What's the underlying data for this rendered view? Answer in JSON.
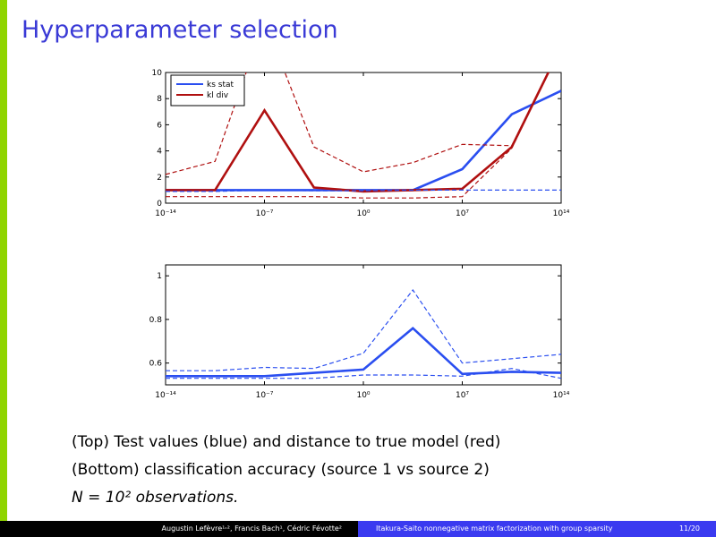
{
  "slide": {
    "title": "Hyperparameter selection",
    "title_color": "#3a3ad6"
  },
  "captions": [
    "(Top) Test values (blue) and distance to true model (red)",
    "(Bottom) classification accuracy (source 1 vs source 2)",
    "N = 10² observations."
  ],
  "footer": {
    "authors": "Augustin Lefèvre¹˒², Francis Bach¹, Cédric Févotte²",
    "talk_title": "Itakura-Saito nonnegative matrix factorization with group sparsity",
    "page": "11/20"
  },
  "chart_data": [
    {
      "type": "line",
      "x_scale": "log",
      "xlim_exponent": [
        -14,
        14
      ],
      "xtick_labels": [
        "10⁻¹⁴",
        "10⁻⁷",
        "10⁰",
        "10⁷",
        "10¹⁴"
      ],
      "xticks_exponent": [
        -14,
        -7,
        0,
        7,
        14
      ],
      "ylim": [
        0,
        10
      ],
      "yticks": [
        0,
        2,
        4,
        6,
        8,
        10
      ],
      "legend": "top-left",
      "x_exponent": [
        -14,
        -10.5,
        -7,
        -3.5,
        0,
        3.5,
        7,
        10.5,
        14
      ],
      "series": [
        {
          "name": "ks stat",
          "color": "#2a4ef0",
          "style": "solid",
          "values": [
            1.0,
            1.0,
            1.0,
            1.0,
            1.0,
            1.0,
            2.6,
            6.8,
            8.6
          ]
        },
        {
          "name": "kl div",
          "color": "#b01010",
          "style": "solid",
          "values": [
            1.0,
            1.0,
            7.1,
            1.2,
            0.9,
            1.0,
            1.1,
            4.3,
            12
          ]
        },
        {
          "color": "#b01010",
          "style": "dashed",
          "values": [
            2.2,
            3.2,
            14,
            4.3,
            2.4,
            3.1,
            4.5,
            4.4,
            12
          ]
        },
        {
          "color": "#b01010",
          "style": "dashed",
          "values": [
            0.5,
            0.5,
            0.5,
            0.5,
            0.4,
            0.4,
            0.5,
            4.2,
            12
          ]
        },
        {
          "color": "#2a4ef0",
          "style": "dashed",
          "values": [
            0.9,
            0.9,
            1.0,
            0.95,
            0.95,
            1.0,
            1.0,
            1.0,
            1.0
          ]
        }
      ]
    },
    {
      "type": "line",
      "x_scale": "log",
      "xlim_exponent": [
        -14,
        14
      ],
      "xtick_labels": [
        "10⁻¹⁴",
        "10⁻⁷",
        "10⁰",
        "10⁷",
        "10¹⁴"
      ],
      "xticks_exponent": [
        -14,
        -7,
        0,
        7,
        14
      ],
      "ylim": [
        0.5,
        1.05
      ],
      "yticks": [
        0.6,
        0.8,
        1
      ],
      "ytick_labels": [
        "0.6",
        "0.8",
        "1"
      ],
      "x_exponent": [
        -14,
        -10.5,
        -7,
        -3.5,
        0,
        3.5,
        7,
        10.5,
        14
      ],
      "series": [
        {
          "color": "#2a4ef0",
          "style": "solid",
          "values": [
            0.54,
            0.54,
            0.54,
            0.555,
            0.57,
            0.76,
            0.55,
            0.56,
            0.555
          ]
        },
        {
          "color": "#2a4ef0",
          "style": "dashed",
          "values": [
            0.565,
            0.565,
            0.58,
            0.575,
            0.645,
            0.935,
            0.6,
            0.62,
            0.64
          ]
        },
        {
          "color": "#2a4ef0",
          "style": "dashed",
          "values": [
            0.53,
            0.53,
            0.53,
            0.53,
            0.545,
            0.545,
            0.54,
            0.575,
            0.53
          ]
        }
      ]
    }
  ]
}
